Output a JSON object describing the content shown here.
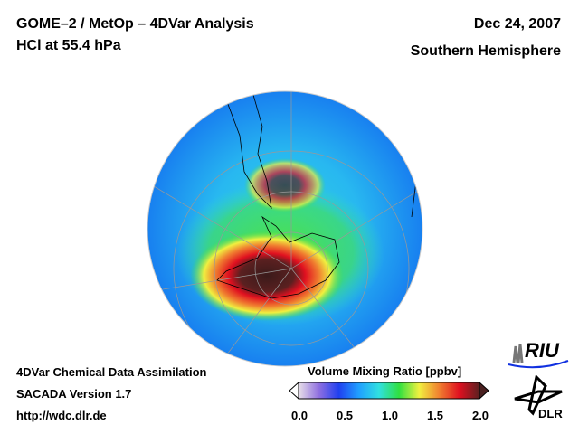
{
  "header": {
    "title_line1": "GOME–2 / MetOp – 4DVar Analysis",
    "title_line2": "HCl at 55.4 hPa",
    "date": "Dec 24, 2007",
    "hemisphere": "Southern Hemisphere"
  },
  "footer": {
    "line1": "4DVar Chemical Data Assimilation",
    "line2": "SACADA Version 1.7",
    "line3": "http://wdc.dlr.de"
  },
  "colorbar": {
    "title": "Volume Mixing Ratio [ppbv]",
    "ticks": [
      "0.0",
      "0.5",
      "1.0",
      "1.5",
      "2.0"
    ],
    "range": [
      0.0,
      2.0
    ],
    "colors": [
      "#e8e0e8",
      "#9070e0",
      "#2040f0",
      "#20a0ff",
      "#30e0e0",
      "#30e040",
      "#f0f040",
      "#f08030",
      "#e01020",
      "#5a2020"
    ]
  },
  "logos": {
    "riu": "RIU",
    "dlr": "DLR"
  }
}
